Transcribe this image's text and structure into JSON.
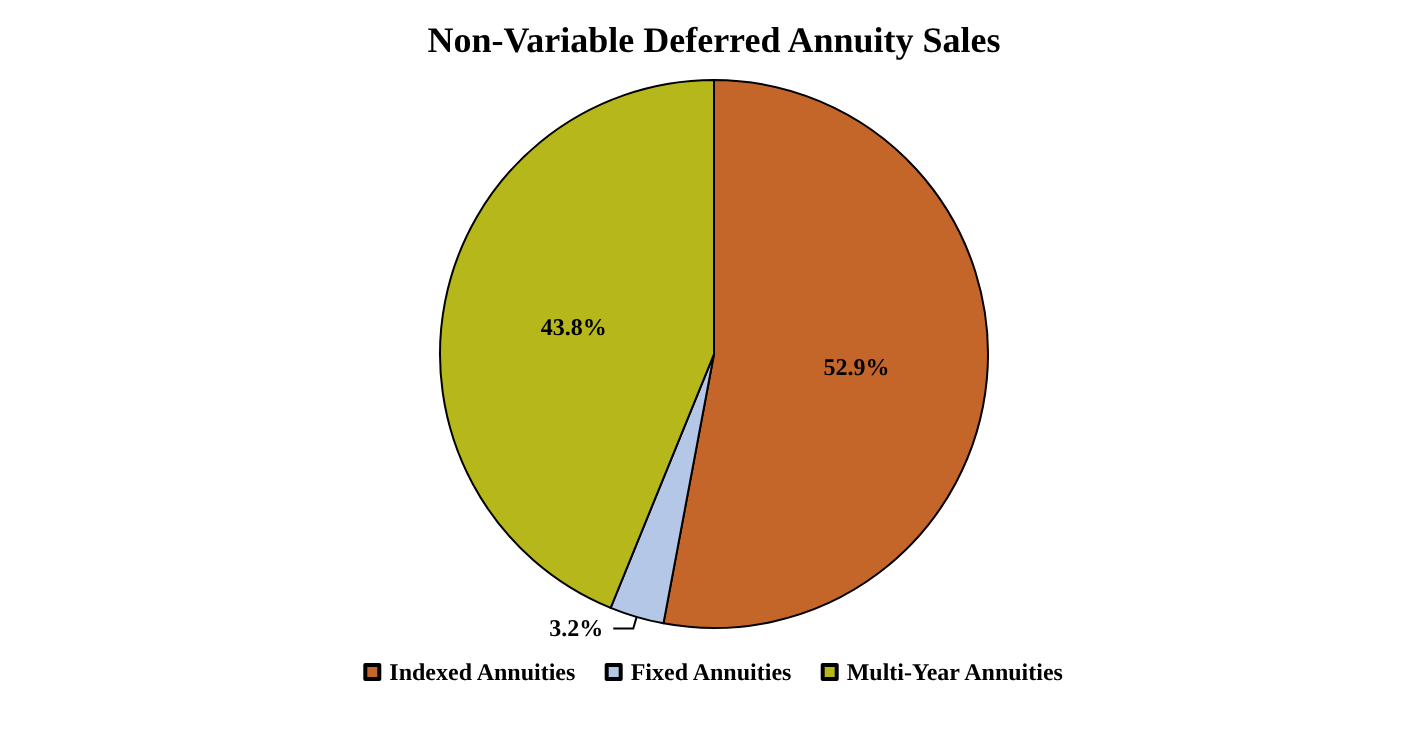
{
  "chart_data": {
    "type": "pie",
    "title": "Non-Variable Deferred Annuity Sales",
    "categories": [
      "Indexed Annuities",
      "Fixed Annuities",
      "Multi-Year Annuities"
    ],
    "values": [
      52.9,
      3.2,
      43.8
    ],
    "colors": [
      "#c4662a",
      "#b4c7e7",
      "#b5b71a"
    ],
    "value_labels": [
      "52.9%",
      "3.2%",
      "43.8%"
    ],
    "legend": "bottom"
  }
}
